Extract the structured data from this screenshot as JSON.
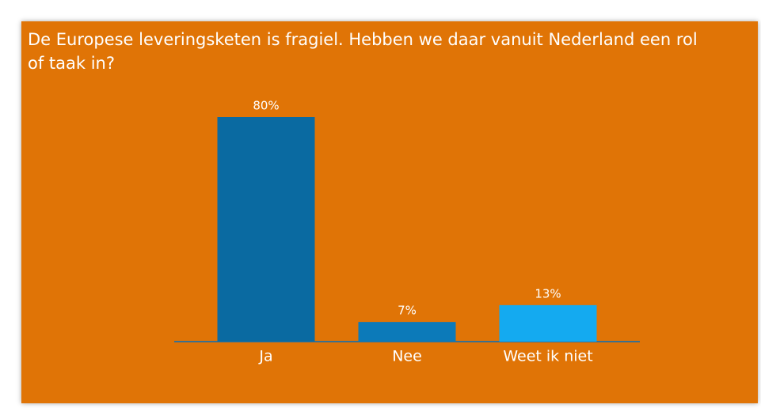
{
  "chart_data": {
    "type": "bar",
    "title": "De Europese leveringsketen is fragiel. Hebben we daar vanuit Nederland een rol of taak in?",
    "categories": [
      "Ja",
      "Nee",
      "Weet ik niet"
    ],
    "values": [
      80,
      7,
      13
    ],
    "value_labels": [
      "80%",
      "7%",
      "13%"
    ],
    "colors": [
      "#0a6aa1",
      "#0c7ab9",
      "#14aaf0"
    ]
  }
}
